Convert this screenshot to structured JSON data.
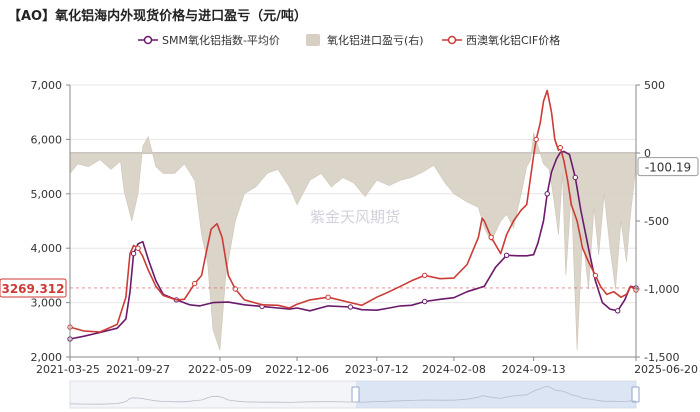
{
  "chart_data": {
    "type": "line",
    "title": "【AO】氧化铝海内外现货价格与进口盈亏（元/吨）",
    "watermark": "紫金天风期货",
    "legend": {
      "placement": "top-center",
      "items": [
        {
          "label": "SMM氧化铝指数-平均价",
          "color": "#6b1a6b",
          "kind": "line-marker"
        },
        {
          "label": "氧化铝进口盈亏(右)",
          "color": "#d7cfc3",
          "kind": "area"
        },
        {
          "label": "西澳氧化铝CIF价格",
          "color": "#cc3b36",
          "kind": "line-marker"
        }
      ]
    },
    "x_ticks": [
      "2021-03-25",
      "2021-09-27",
      "2022-05-09",
      "2022-12-06",
      "2023-07-12",
      "2024-02-08",
      "2024-09-13",
      "2025-06-20"
    ],
    "x_range": [
      "2021-03-25",
      "2025-06-20"
    ],
    "y_left": {
      "min": 2000,
      "max": 7000,
      "ticks": [
        2000,
        3000,
        4000,
        5000,
        6000,
        7000
      ]
    },
    "y_right": {
      "min": -1500,
      "max": 500,
      "ticks": [
        -1500,
        -1000,
        -500,
        0,
        500
      ]
    },
    "end_labels": {
      "left": "3269.312",
      "right": "-100.19"
    },
    "grid": "horizontal",
    "series": [
      {
        "name": "SMM氧化铝指数-平均价",
        "axis": "left",
        "color": "#6b1a6b",
        "x": [
          "2021-03-25",
          "2021-05-01",
          "2021-06-15",
          "2021-08-01",
          "2021-08-25",
          "2021-09-05",
          "2021-09-15",
          "2021-09-27",
          "2021-10-10",
          "2021-10-25",
          "2021-11-15",
          "2021-12-05",
          "2022-01-10",
          "2022-02-15",
          "2022-03-15",
          "2022-04-20",
          "2022-06-01",
          "2022-07-15",
          "2022-09-01",
          "2022-10-15",
          "2022-11-15",
          "2022-12-06",
          "2023-01-10",
          "2023-03-01",
          "2023-05-01",
          "2023-06-01",
          "2023-07-12",
          "2023-08-15",
          "2023-09-15",
          "2023-10-15",
          "2023-11-20",
          "2024-01-01",
          "2024-02-08",
          "2024-03-15",
          "2024-05-01",
          "2024-06-01",
          "2024-07-01",
          "2024-08-01",
          "2024-08-25",
          "2024-09-13",
          "2024-09-25",
          "2024-10-10",
          "2024-10-20",
          "2024-11-01",
          "2024-11-15",
          "2024-11-25",
          "2024-12-05",
          "2024-12-20",
          "2025-01-05",
          "2025-01-20",
          "2025-02-10",
          "2025-03-01",
          "2025-03-20",
          "2025-04-10",
          "2025-05-01",
          "2025-05-20",
          "2025-06-05",
          "2025-06-20"
        ],
        "values": [
          2330,
          2380,
          2450,
          2530,
          2700,
          3200,
          3900,
          4080,
          4120,
          3800,
          3400,
          3150,
          3050,
          2960,
          2940,
          3000,
          3010,
          2960,
          2930,
          2900,
          2880,
          2900,
          2850,
          2940,
          2920,
          2870,
          2860,
          2900,
          2940,
          2950,
          3020,
          3060,
          3090,
          3200,
          3300,
          3650,
          3870,
          3860,
          3860,
          3880,
          4100,
          4500,
          5000,
          5400,
          5650,
          5760,
          5780,
          5720,
          5300,
          4700,
          4000,
          3400,
          3000,
          2880,
          2850,
          3050,
          3300,
          3270
        ]
      },
      {
        "name": "西澳氧化铝CIF价格",
        "axis": "left",
        "color": "#cc3b36",
        "x": [
          "2021-03-25",
          "2021-05-01",
          "2021-06-15",
          "2021-08-01",
          "2021-08-25",
          "2021-09-05",
          "2021-09-15",
          "2021-09-27",
          "2021-10-10",
          "2021-10-25",
          "2021-11-15",
          "2021-12-05",
          "2022-01-10",
          "2022-02-01",
          "2022-03-01",
          "2022-03-20",
          "2022-04-01",
          "2022-04-15",
          "2022-05-01",
          "2022-05-15",
          "2022-06-01",
          "2022-06-20",
          "2022-07-15",
          "2022-09-01",
          "2022-10-15",
          "2022-11-15",
          "2022-12-06",
          "2023-01-10",
          "2023-03-01",
          "2023-05-01",
          "2023-06-01",
          "2023-07-12",
          "2023-08-15",
          "2023-09-15",
          "2023-10-15",
          "2023-11-20",
          "2024-01-01",
          "2024-02-08",
          "2024-03-15",
          "2024-04-15",
          "2024-04-25",
          "2024-05-01",
          "2024-05-20",
          "2024-06-15",
          "2024-07-01",
          "2024-07-20",
          "2024-08-10",
          "2024-08-25",
          "2024-09-13",
          "2024-09-20",
          "2024-10-01",
          "2024-10-10",
          "2024-10-20",
          "2024-11-01",
          "2024-11-10",
          "2024-11-20",
          "2024-11-25",
          "2024-12-05",
          "2024-12-15",
          "2024-12-25",
          "2025-01-10",
          "2025-01-25",
          "2025-02-10",
          "2025-03-01",
          "2025-03-15",
          "2025-04-01",
          "2025-04-20",
          "2025-05-10",
          "2025-05-25",
          "2025-06-05",
          "2025-06-20"
        ],
        "values": [
          2550,
          2480,
          2460,
          2600,
          3100,
          3900,
          4050,
          4000,
          3850,
          3600,
          3300,
          3130,
          3050,
          3060,
          3350,
          3500,
          3900,
          4350,
          4450,
          4200,
          3500,
          3250,
          3050,
          2960,
          2950,
          2900,
          2970,
          3050,
          3100,
          3000,
          2950,
          3100,
          3200,
          3300,
          3400,
          3500,
          3440,
          3450,
          3700,
          4200,
          4550,
          4500,
          4200,
          3900,
          4250,
          4500,
          4700,
          4800,
          5700,
          6000,
          6300,
          6700,
          6900,
          6500,
          6000,
          5800,
          5850,
          5600,
          5250,
          4800,
          4500,
          4000,
          3750,
          3500,
          3300,
          3150,
          3200,
          3100,
          3150,
          3300,
          3230
        ]
      },
      {
        "name": "氧化铝进口盈亏(右)",
        "axis": "right",
        "color": "#d7cfc3",
        "x": [
          "2021-03-25",
          "2021-04-15",
          "2021-05-15",
          "2021-06-15",
          "2021-07-15",
          "2021-08-10",
          "2021-08-20",
          "2021-09-10",
          "2021-09-27",
          "2021-10-10",
          "2021-10-25",
          "2021-11-15",
          "2021-12-05",
          "2022-01-05",
          "2022-02-01",
          "2022-03-01",
          "2022-03-20",
          "2022-04-05",
          "2022-04-20",
          "2022-05-09",
          "2022-05-25",
          "2022-06-20",
          "2022-07-15",
          "2022-08-15",
          "2022-09-15",
          "2022-10-15",
          "2022-11-15",
          "2022-12-06",
          "2023-01-10",
          "2023-02-10",
          "2023-03-10",
          "2023-04-10",
          "2023-05-10",
          "2023-06-10",
          "2023-07-12",
          "2023-08-15",
          "2023-09-15",
          "2023-10-15",
          "2023-11-15",
          "2023-12-15",
          "2024-01-15",
          "2024-02-08",
          "2024-03-15",
          "2024-04-15",
          "2024-05-01",
          "2024-05-20",
          "2024-06-15",
          "2024-07-01",
          "2024-07-20",
          "2024-08-10",
          "2024-08-25",
          "2024-09-05",
          "2024-09-13",
          "2024-09-25",
          "2024-10-10",
          "2024-10-25",
          "2024-11-05",
          "2024-11-20",
          "2024-12-01",
          "2024-12-10",
          "2024-12-25",
          "2025-01-10",
          "2025-01-25",
          "2025-02-10",
          "2025-02-25",
          "2025-03-10",
          "2025-03-25",
          "2025-04-10",
          "2025-04-25",
          "2025-05-10",
          "2025-05-25",
          "2025-06-05",
          "2025-06-20"
        ],
        "values": [
          -150,
          -80,
          -100,
          -50,
          -120,
          -60,
          -280,
          -500,
          -300,
          50,
          120,
          -100,
          -150,
          -150,
          -80,
          -200,
          -600,
          -800,
          -1300,
          -1450,
          -900,
          -500,
          -300,
          -250,
          -150,
          -120,
          -250,
          -380,
          -200,
          -150,
          -250,
          -180,
          -220,
          -320,
          -200,
          -240,
          -200,
          -180,
          -140,
          -90,
          -220,
          -300,
          -360,
          -400,
          -550,
          -650,
          -500,
          -450,
          -550,
          -300,
          -100,
          -50,
          150,
          50,
          -80,
          -120,
          -300,
          -600,
          -150,
          -900,
          -300,
          -1450,
          -600,
          -1000,
          -400,
          -750,
          -300,
          -700,
          -1000,
          -500,
          -800,
          -450,
          -100
        ]
      }
    ]
  }
}
